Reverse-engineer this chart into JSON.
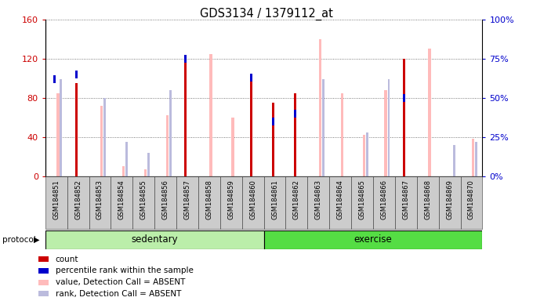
{
  "title": "GDS3134 / 1379112_at",
  "samples": [
    "GSM184851",
    "GSM184852",
    "GSM184853",
    "GSM184854",
    "GSM184855",
    "GSM184856",
    "GSM184857",
    "GSM184858",
    "GSM184859",
    "GSM184860",
    "GSM184861",
    "GSM184862",
    "GSM184863",
    "GSM184864",
    "GSM184865",
    "GSM184866",
    "GSM184867",
    "GSM184868",
    "GSM184869",
    "GSM184870"
  ],
  "count": [
    0,
    95,
    0,
    0,
    0,
    0,
    120,
    0,
    0,
    100,
    75,
    85,
    0,
    0,
    0,
    0,
    120,
    0,
    0,
    0
  ],
  "percentile": [
    62,
    65,
    0,
    0,
    0,
    0,
    75,
    0,
    0,
    63,
    35,
    40,
    0,
    0,
    0,
    0,
    50,
    0,
    0,
    0
  ],
  "value_absent": [
    85,
    0,
    72,
    10,
    7,
    62,
    0,
    125,
    60,
    0,
    0,
    0,
    140,
    85,
    42,
    88,
    0,
    130,
    0,
    38
  ],
  "rank_absent": [
    62,
    0,
    50,
    22,
    15,
    55,
    0,
    0,
    0,
    0,
    0,
    0,
    62,
    0,
    28,
    62,
    0,
    0,
    20,
    22
  ],
  "sedentary_count": 10,
  "color_count": "#cc0000",
  "color_percentile": "#0000cc",
  "color_value_absent": "#ffbbbb",
  "color_rank_absent": "#bbbbdd",
  "color_sedentary_bg": "#bbeeaa",
  "color_exercise_bg": "#55dd44",
  "ylim_left": [
    0,
    160
  ],
  "yticks_left": [
    0,
    40,
    80,
    120,
    160
  ],
  "ytick_labels_left": [
    "0",
    "40",
    "80",
    "120",
    "160"
  ],
  "ylim_right": [
    0,
    100
  ],
  "yticks_right": [
    0,
    25,
    50,
    75,
    100
  ],
  "ytick_labels_right": [
    "0%",
    "25%",
    "50%",
    "75%",
    "100%"
  ]
}
